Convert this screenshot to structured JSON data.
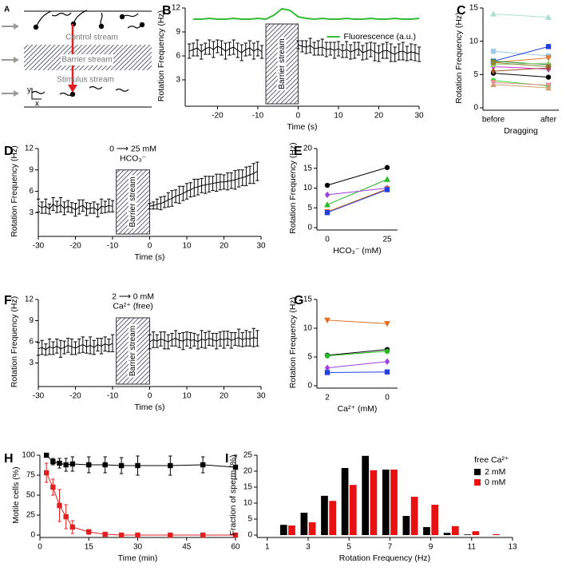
{
  "diagram": {
    "panel": "A",
    "labels": {
      "control": "Control stream",
      "barrier": "Barrier stream",
      "stimulus": "Stimulus stream",
      "y": "y",
      "x": "x"
    }
  },
  "chart_data": [
    {
      "panel": "B",
      "type": "line",
      "ylabel": "Rotation  Frequency (Hz)",
      "xlabel": "Time (s)",
      "xlim": [
        -28,
        30
      ],
      "xticks": [
        -20,
        -10,
        0,
        10,
        20,
        30
      ],
      "ylim": [
        0,
        12
      ],
      "yticks": [
        3,
        6,
        9,
        12
      ],
      "shaded": {
        "x": [
          -8,
          0
        ],
        "y": [
          0,
          10
        ],
        "label": "Barrier stream"
      },
      "legend": "right",
      "series": [
        {
          "color": "#000000",
          "marker": "none",
          "x": [
            -27,
            -26,
            -25,
            -24,
            -23,
            -22,
            -21,
            -20,
            -19,
            -18,
            -17,
            -16,
            -15,
            -14,
            -13,
            -12,
            -11,
            -10,
            -9,
            null,
            0,
            1,
            2,
            3,
            4,
            5,
            6,
            7,
            8,
            9,
            10,
            11,
            12,
            13,
            14,
            15,
            16,
            17,
            18,
            19,
            20,
            21,
            22,
            23,
            24,
            25,
            26,
            27,
            28,
            29,
            30
          ],
          "values": [
            6.6,
            6.8,
            7.0,
            6.5,
            6.9,
            7.1,
            6.8,
            7.2,
            7.0,
            6.6,
            6.9,
            7.1,
            6.7,
            6.4,
            6.8,
            7.0,
            6.6,
            6.9,
            6.5,
            null,
            7.4,
            7.2,
            7.1,
            7.3,
            6.9,
            7.0,
            7.1,
            6.8,
            6.9,
            6.7,
            6.9,
            6.6,
            6.8,
            6.5,
            6.7,
            6.9,
            6.4,
            6.6,
            6.8,
            6.5,
            6.3,
            6.6,
            6.7,
            6.4,
            6.2,
            6.5,
            6.6,
            6.3,
            6.5,
            6.4,
            6.2
          ],
          "errors": [
            0.9,
            0.8,
            1.0,
            0.9,
            0.7,
            0.9,
            1.0,
            0.8,
            0.9,
            1.0,
            0.8,
            0.9,
            0.9,
            1.0,
            0.8,
            0.9,
            1.0,
            0.9,
            0.8,
            null,
            0.5,
            0.7,
            0.8,
            0.9,
            0.8,
            0.9,
            1.0,
            0.9,
            0.8,
            1.0,
            0.9,
            0.8,
            1.0,
            0.9,
            1.0,
            0.8,
            0.9,
            1.0,
            0.9,
            1.1,
            1.0,
            0.9,
            1.0,
            1.1,
            0.9,
            1.0,
            1.1,
            0.9,
            1.0,
            1.0,
            0.9
          ]
        },
        {
          "name": "Fluorescence (a.u.)",
          "color": "#33bb33",
          "linewidth": 2,
          "marker": "none",
          "x": [
            -26,
            -24,
            -22,
            -20,
            -18,
            -16,
            -14,
            -12,
            -10,
            -8,
            -6,
            -4,
            -2,
            0,
            2,
            4,
            6,
            8,
            10,
            12,
            14,
            16,
            18,
            20,
            22,
            24,
            26,
            28,
            30
          ],
          "values": [
            10.6,
            10.6,
            10.7,
            10.6,
            10.6,
            10.7,
            10.6,
            10.6,
            10.7,
            10.6,
            11.1,
            11.9,
            11.7,
            10.9,
            10.7,
            10.6,
            10.7,
            10.6,
            10.6,
            10.7,
            10.6,
            10.6,
            10.7,
            10.6,
            10.6,
            10.7,
            10.6,
            10.6,
            10.7
          ]
        }
      ]
    },
    {
      "panel": "C",
      "type": "line",
      "ylabel": "Rotation  Frequency (Hz)",
      "xlabel": "Dragging",
      "categories": [
        "before",
        "after"
      ],
      "ylim": [
        0,
        15
      ],
      "yticks": [
        0,
        5,
        10,
        15
      ],
      "series": [
        {
          "color": "#a8e0d0",
          "marker": "triangle",
          "values": [
            14.1,
            13.6
          ]
        },
        {
          "color": "#9ec9ea",
          "marker": "square",
          "values": [
            8.5,
            7.8
          ]
        },
        {
          "color": "#1f3fd8",
          "marker": "square",
          "values": [
            7.0,
            9.2
          ]
        },
        {
          "color": "#e07a2a",
          "marker": "triangle-down",
          "values": [
            6.8,
            7.5
          ]
        },
        {
          "color": "#2c8a3a",
          "marker": "circle",
          "values": [
            7.0,
            6.5
          ]
        },
        {
          "color": "#cc33cc",
          "marker": "diamond",
          "values": [
            6.2,
            5.8
          ]
        },
        {
          "color": "#9ad07a",
          "marker": "triangle",
          "values": [
            6.5,
            6.7
          ]
        },
        {
          "color": "#8a8a3a",
          "marker": "square",
          "values": [
            6.8,
            6.2
          ]
        },
        {
          "color": "#000000",
          "marker": "circle",
          "values": [
            5.2,
            4.6
          ]
        },
        {
          "color": "#a0522d",
          "marker": "diamond",
          "values": [
            5.5,
            6.0
          ]
        },
        {
          "color": "#33dd33",
          "marker": "circle",
          "values": [
            4.1,
            3.3
          ]
        },
        {
          "color": "#d2a070",
          "marker": "triangle",
          "values": [
            3.5,
            3.0
          ]
        },
        {
          "color": "#e89090",
          "marker": "triangle-down",
          "values": [
            3.8,
            3.4
          ]
        }
      ]
    },
    {
      "panel": "D",
      "type": "line",
      "ylabel": "Rotation  Frequency (Hz)",
      "xlabel": "Time (s)",
      "xlim": [
        -30,
        30
      ],
      "xticks": [
        -30,
        -20,
        -10,
        0,
        10,
        20,
        30
      ],
      "ylim": [
        0,
        12
      ],
      "yticks": [
        3,
        6,
        9,
        12
      ],
      "shaded": {
        "x": [
          -9,
          0
        ],
        "y": [
          0,
          9
        ],
        "label": "Barrier stream"
      },
      "annotation": [
        "0 ⟶ 25 mM",
        "HCO₃⁻"
      ],
      "series": [
        {
          "color": "#000000",
          "marker": "none",
          "x": [
            -30,
            -29,
            -28,
            -27,
            -26,
            -25,
            -24,
            -23,
            -22,
            -21,
            -20,
            -19,
            -18,
            -17,
            -16,
            -15,
            -14,
            -13,
            -12,
            -11,
            -10,
            null,
            0,
            1,
            2,
            3,
            4,
            5,
            6,
            7,
            8,
            9,
            10,
            11,
            12,
            13,
            14,
            15,
            16,
            17,
            18,
            19,
            20,
            21,
            22,
            23,
            24,
            25,
            26,
            27,
            28,
            29
          ],
          "values": [
            4.0,
            3.7,
            3.9,
            3.5,
            4.2,
            3.8,
            4.1,
            3.6,
            3.9,
            3.7,
            3.4,
            3.8,
            4.0,
            3.5,
            3.6,
            3.7,
            3.3,
            3.9,
            3.8,
            4.0,
            3.9,
            null,
            3.9,
            4.0,
            4.2,
            4.3,
            4.5,
            4.8,
            5.0,
            5.3,
            5.5,
            5.7,
            6.0,
            6.2,
            6.5,
            6.6,
            6.8,
            6.9,
            7.0,
            7.1,
            7.2,
            7.3,
            7.3,
            7.4,
            7.5,
            7.6,
            7.8,
            7.9,
            8.1,
            8.3,
            8.5,
            8.8
          ],
          "errors": [
            0.9,
            0.8,
            1.0,
            0.7,
            0.9,
            0.8,
            1.0,
            0.9,
            0.8,
            0.7,
            0.9,
            1.0,
            0.8,
            0.9,
            0.7,
            0.8,
            0.9,
            1.0,
            0.8,
            0.9,
            0.8,
            null,
            0.4,
            0.5,
            0.7,
            0.9,
            0.8,
            1.0,
            1.1,
            0.9,
            1.2,
            1.0,
            1.1,
            1.0,
            1.2,
            1.1,
            1.0,
            1.2,
            1.1,
            1.0,
            1.2,
            1.1,
            1.0,
            1.2,
            1.1,
            1.3,
            1.2,
            1.1,
            1.3,
            1.2,
            1.4,
            1.3
          ]
        }
      ]
    },
    {
      "panel": "E",
      "type": "line",
      "ylabel": "Rotation  Frequency (Hz)",
      "xlabel": "HCO₃⁻ (mM)",
      "categories": [
        "0",
        "25"
      ],
      "ylim": [
        0,
        20
      ],
      "yticks": [
        0,
        5,
        10,
        15,
        20
      ],
      "series": [
        {
          "color": "#000000",
          "marker": "circle",
          "values": [
            10.7,
            15.2
          ]
        },
        {
          "color": "#22bb22",
          "marker": "triangle",
          "values": [
            5.8,
            12.2
          ]
        },
        {
          "color": "#a040e0",
          "marker": "diamond",
          "values": [
            8.3,
            10.0
          ]
        },
        {
          "color": "#e07020",
          "marker": "triangle-down",
          "values": [
            4.0,
            9.8
          ]
        },
        {
          "color": "#2040e0",
          "marker": "square",
          "values": [
            3.8,
            9.6
          ]
        }
      ]
    },
    {
      "panel": "F",
      "type": "line",
      "ylabel": "Rotation  Frequency (Hz)",
      "xlabel": "Time (s)",
      "xlim": [
        -30,
        30
      ],
      "xticks": [
        -30,
        -20,
        -10,
        0,
        10,
        20,
        30
      ],
      "ylim": [
        0,
        12
      ],
      "yticks": [
        3,
        6,
        9,
        12
      ],
      "shaded": {
        "x": [
          -9,
          0
        ],
        "y": [
          0,
          9.4
        ],
        "label": "Barrier stream"
      },
      "annotation": [
        "2 ⟶ 0 mM",
        "Ca²⁺ (free)"
      ],
      "series": [
        {
          "color": "#000000",
          "marker": "none",
          "x": [
            -30,
            -29,
            -28,
            -27,
            -26,
            -25,
            -24,
            -23,
            -22,
            -21,
            -20,
            -19,
            -18,
            -17,
            -16,
            -15,
            -14,
            -13,
            -12,
            -11,
            -10,
            null,
            0,
            1,
            2,
            3,
            4,
            5,
            6,
            7,
            8,
            9,
            10,
            11,
            12,
            13,
            14,
            15,
            16,
            17,
            18,
            19,
            20,
            21,
            22,
            23,
            24,
            25,
            26,
            27,
            28,
            29
          ],
          "values": [
            5.0,
            5.2,
            4.9,
            5.3,
            5.1,
            5.4,
            5.0,
            5.2,
            5.5,
            5.3,
            5.1,
            5.4,
            5.6,
            5.3,
            5.5,
            5.2,
            5.6,
            5.4,
            5.7,
            5.5,
            5.8,
            null,
            6.0,
            6.3,
            6.1,
            6.4,
            6.2,
            6.0,
            6.3,
            6.5,
            6.2,
            6.1,
            6.4,
            6.2,
            6.3,
            6.0,
            6.4,
            6.2,
            6.5,
            6.3,
            6.1,
            6.4,
            6.3,
            6.5,
            6.2,
            6.4,
            6.6,
            6.3,
            6.5,
            6.4,
            6.6,
            6.5
          ],
          "errors": [
            0.9,
            1.0,
            0.8,
            1.1,
            0.9,
            1.0,
            1.2,
            0.9,
            1.0,
            1.1,
            0.9,
            1.0,
            1.1,
            0.9,
            1.2,
            1.0,
            0.9,
            1.1,
            1.0,
            0.9,
            1.2,
            null,
            1.0,
            1.1,
            0.9,
            1.0,
            1.2,
            1.0,
            0.9,
            1.1,
            1.0,
            1.2,
            1.0,
            1.1,
            0.9,
            1.0,
            1.2,
            1.1,
            1.0,
            0.9,
            1.1,
            1.0,
            1.2,
            1.0,
            1.1,
            0.9,
            1.2,
            1.0,
            1.1,
            1.0,
            1.3,
            1.1
          ]
        }
      ]
    },
    {
      "panel": "G",
      "type": "line",
      "ylabel": "Rotation  Frequency (Hz)",
      "xlabel": "Ca²⁺ (mM)",
      "categories": [
        "2",
        "0"
      ],
      "ylim": [
        0,
        15
      ],
      "yticks": [
        0,
        5,
        10,
        15
      ],
      "series": [
        {
          "color": "#e07020",
          "marker": "triangle-down",
          "values": [
            11.4,
            10.8
          ]
        },
        {
          "color": "#000000",
          "marker": "circle",
          "values": [
            5.3,
            6.3
          ]
        },
        {
          "color": "#22bb22",
          "marker": "circle",
          "values": [
            5.2,
            6.0
          ]
        },
        {
          "color": "#a040e0",
          "marker": "diamond",
          "values": [
            3.1,
            4.2
          ]
        },
        {
          "color": "#2040e0",
          "marker": "square",
          "values": [
            2.3,
            2.4
          ]
        }
      ]
    },
    {
      "panel": "H",
      "type": "line",
      "ylabel": "Motile cells (%)",
      "xlabel": "Time (min)",
      "xlim": [
        0,
        60
      ],
      "xticks": [
        0,
        15,
        30,
        45,
        60
      ],
      "ylim": [
        0,
        100
      ],
      "yticks": [
        0,
        25,
        50,
        75,
        100
      ],
      "series": [
        {
          "color": "#000000",
          "marker": "square",
          "x": [
            2,
            4,
            6,
            8,
            10,
            15,
            20,
            25,
            30,
            40,
            50,
            60
          ],
          "values": [
            100,
            92,
            90,
            88,
            89,
            88,
            88,
            87,
            87,
            87,
            88,
            85
          ],
          "errors": [
            0,
            4,
            6,
            8,
            9,
            10,
            10,
            10,
            12,
            12,
            10,
            15
          ]
        },
        {
          "color": "#e02020",
          "marker": "square",
          "x": [
            2,
            4,
            6,
            8,
            10,
            15,
            20,
            25,
            30,
            40,
            50,
            60
          ],
          "values": [
            78,
            60,
            37,
            23,
            10,
            4,
            1,
            0,
            0,
            0,
            0,
            0
          ],
          "errors": [
            12,
            10,
            20,
            15,
            8,
            3,
            1,
            0,
            0,
            0,
            0,
            0
          ]
        }
      ]
    },
    {
      "panel": "I",
      "type": "bar",
      "ylabel": "Fraction of sperm (%)",
      "xlabel": "Rotation Frequency (Hz)",
      "xlim": [
        0.5,
        13
      ],
      "xticks": [
        1,
        3,
        5,
        7,
        9,
        11,
        13
      ],
      "ylim": [
        0,
        25
      ],
      "yticks": [
        0,
        5,
        10,
        15,
        20,
        25
      ],
      "legend": "upper right",
      "legend_title": "free Ca²⁺",
      "series": [
        {
          "name": "2 mM",
          "color": "#000000",
          "x": [
            2,
            3,
            4,
            5,
            6,
            7,
            8,
            9,
            10,
            11,
            12
          ],
          "values": [
            3.2,
            7,
            12.3,
            21,
            24.8,
            20.5,
            6,
            2.5,
            0.7,
            0.2,
            0
          ]
        },
        {
          "name": "0 mM",
          "color": "#e81010",
          "x": [
            2,
            3,
            4,
            5,
            6,
            7,
            8,
            9,
            10,
            11,
            12
          ],
          "values": [
            3,
            4,
            10.7,
            15.7,
            20.3,
            20.5,
            12,
            9.5,
            2.8,
            1.2,
            0.3
          ]
        }
      ]
    }
  ]
}
